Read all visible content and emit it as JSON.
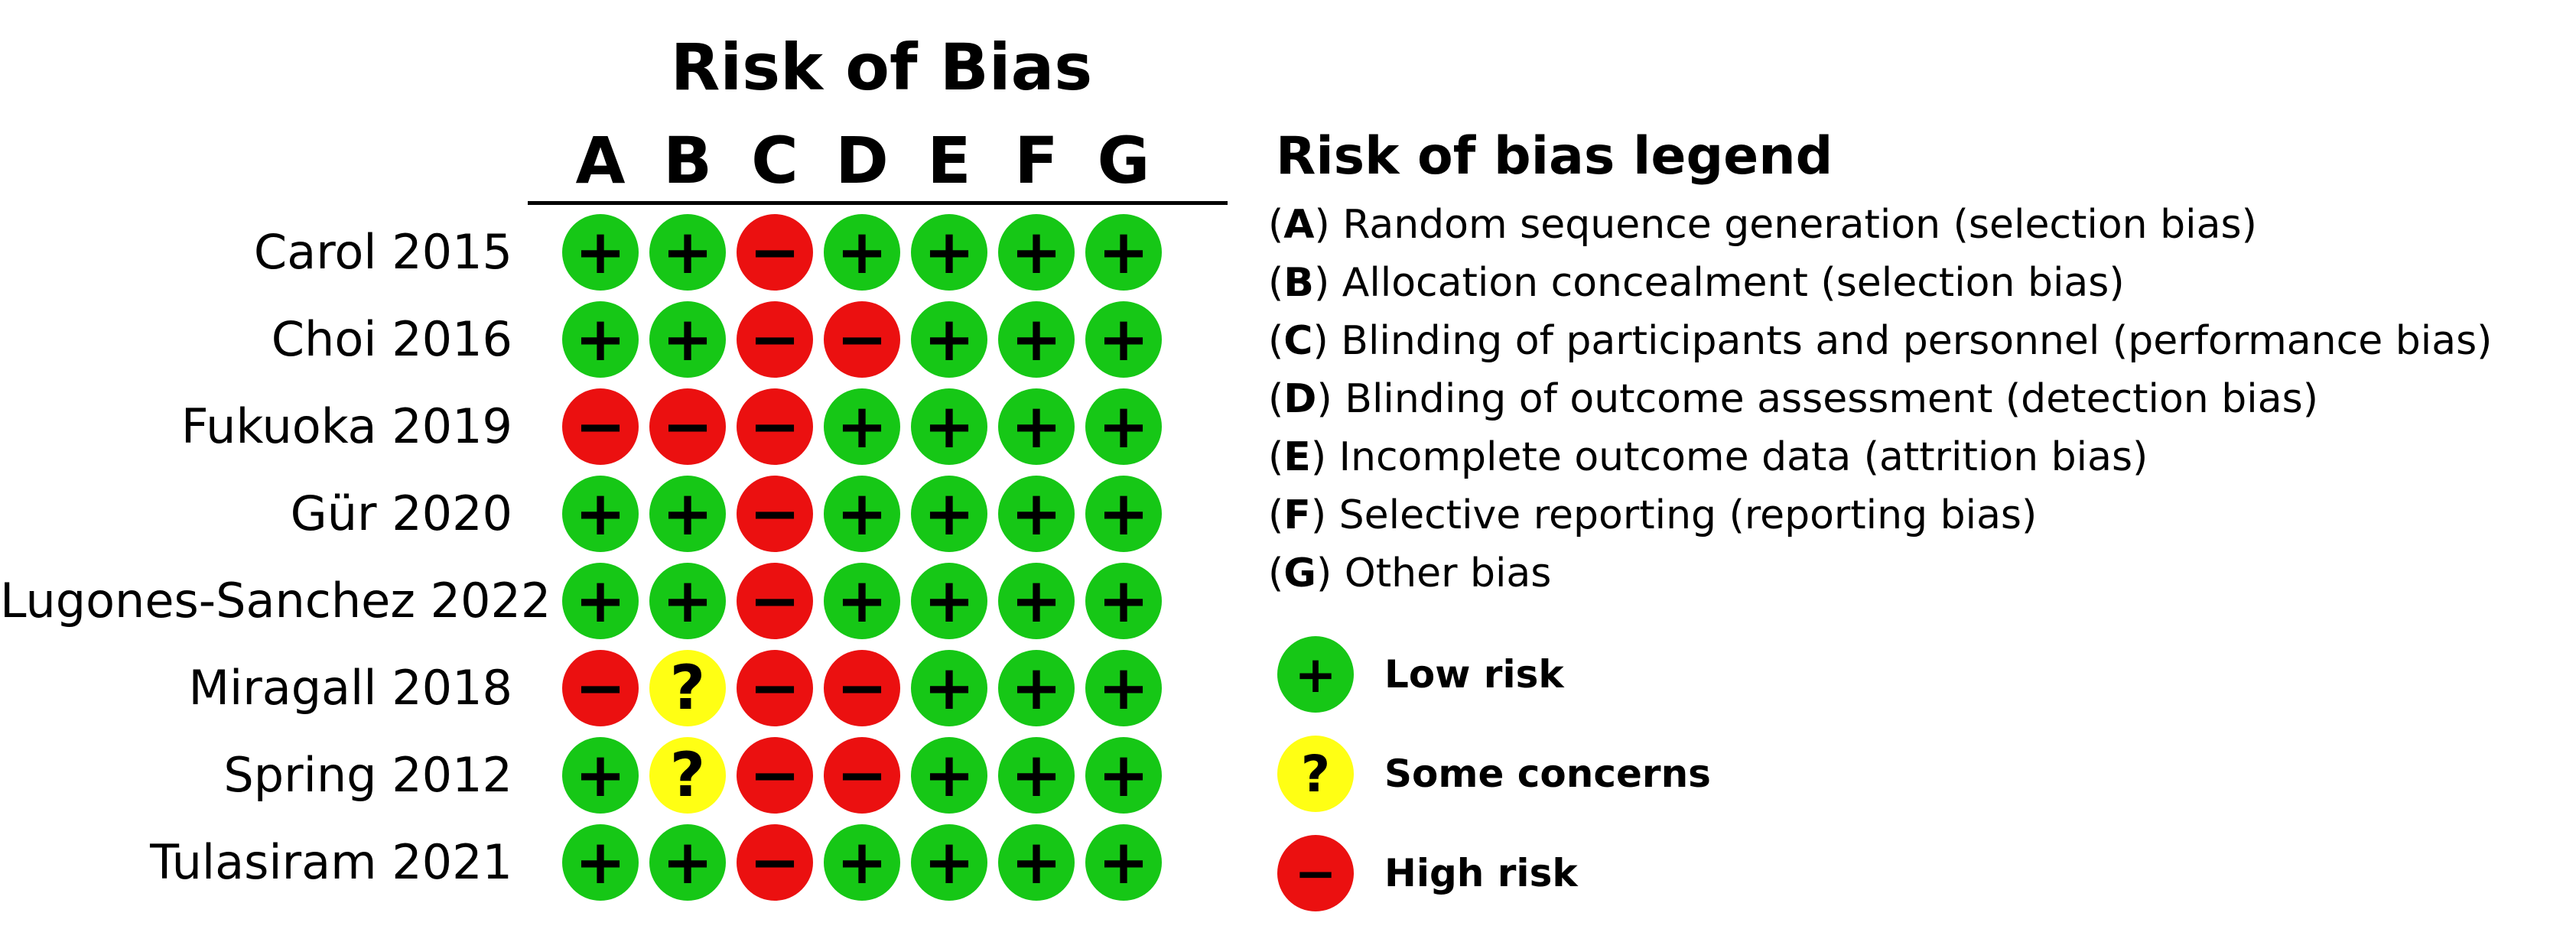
{
  "title": "Risk of Bias",
  "colors": {
    "low": "#16c716",
    "some": "#ffff14",
    "high": "#eb1010"
  },
  "symbols": {
    "low": "+",
    "some": "?",
    "high": "−"
  },
  "domains": [
    "A",
    "B",
    "C",
    "D",
    "E",
    "F",
    "G"
  ],
  "studies": [
    {
      "name": "Carol 2015",
      "ratings": [
        "low",
        "low",
        "high",
        "low",
        "low",
        "low",
        "low"
      ]
    },
    {
      "name": "Choi 2016",
      "ratings": [
        "low",
        "low",
        "high",
        "high",
        "low",
        "low",
        "low"
      ]
    },
    {
      "name": "Fukuoka 2019",
      "ratings": [
        "high",
        "high",
        "high",
        "low",
        "low",
        "low",
        "low"
      ]
    },
    {
      "name": "Gür 2020",
      "ratings": [
        "low",
        "low",
        "high",
        "low",
        "low",
        "low",
        "low"
      ]
    },
    {
      "name": "Lugones-Sanchez 2022",
      "ratings": [
        "low",
        "low",
        "high",
        "low",
        "low",
        "low",
        "low"
      ]
    },
    {
      "name": "Miragall 2018",
      "ratings": [
        "high",
        "some",
        "high",
        "high",
        "low",
        "low",
        "low"
      ]
    },
    {
      "name": "Spring 2012",
      "ratings": [
        "low",
        "some",
        "high",
        "high",
        "low",
        "low",
        "low"
      ]
    },
    {
      "name": "Tulasiram 2021",
      "ratings": [
        "low",
        "low",
        "high",
        "low",
        "low",
        "low",
        "low"
      ]
    }
  ],
  "legend": {
    "title": "Risk of bias legend",
    "items": [
      {
        "letter": "A",
        "text": "Random sequence generation (selection bias)"
      },
      {
        "letter": "B",
        "text": "Allocation concealment (selection bias)"
      },
      {
        "letter": "C",
        "text": "Blinding of participants and personnel (performance bias)"
      },
      {
        "letter": "D",
        "text": "Blinding of outcome assessment (detection bias)"
      },
      {
        "letter": "E",
        "text": "Incomplete outcome data (attrition bias)"
      },
      {
        "letter": "F",
        "text": "Selective reporting (reporting bias)"
      },
      {
        "letter": "G",
        "text": "Other bias"
      }
    ],
    "key": [
      {
        "level": "low",
        "label": "Low risk"
      },
      {
        "level": "some",
        "label": "Some concerns"
      },
      {
        "level": "high",
        "label": "High risk"
      }
    ]
  }
}
